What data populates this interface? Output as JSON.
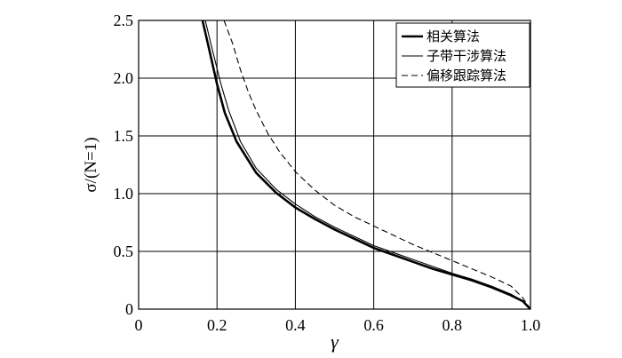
{
  "chart_data": {
    "type": "line",
    "xlabel": "γ",
    "ylabel": "σ/(N=1)",
    "xlim": [
      0,
      1.0
    ],
    "ylim": [
      0,
      2.5
    ],
    "x_ticks": [
      "0",
      "0.2",
      "0.4",
      "0.6",
      "0.8",
      "1.0"
    ],
    "y_ticks": [
      "0",
      "0.5",
      "1.0",
      "1.5",
      "2.0",
      "2.5"
    ],
    "grid": true,
    "legend_position": "top-right",
    "series": [
      {
        "name": "相关算法",
        "style": "thick-solid",
        "x": [
          0.163,
          0.18,
          0.2,
          0.22,
          0.25,
          0.3,
          0.35,
          0.4,
          0.45,
          0.5,
          0.55,
          0.6,
          0.65,
          0.7,
          0.75,
          0.8,
          0.85,
          0.9,
          0.95,
          0.98,
          1.0
        ],
        "y": [
          2.5,
          2.25,
          1.95,
          1.7,
          1.45,
          1.18,
          1.01,
          0.88,
          0.78,
          0.69,
          0.61,
          0.53,
          0.47,
          0.41,
          0.35,
          0.3,
          0.25,
          0.19,
          0.12,
          0.07,
          0.0
        ]
      },
      {
        "name": "子带干涉算法",
        "style": "thin-solid",
        "x": [
          0.17,
          0.19,
          0.21,
          0.23,
          0.26,
          0.3,
          0.35,
          0.4,
          0.45,
          0.5,
          0.55,
          0.6,
          0.65,
          0.7,
          0.75,
          0.8,
          0.85,
          0.9,
          0.95,
          0.98,
          1.0
        ],
        "y": [
          2.5,
          2.22,
          1.95,
          1.72,
          1.45,
          1.22,
          1.04,
          0.91,
          0.8,
          0.71,
          0.63,
          0.55,
          0.49,
          0.43,
          0.37,
          0.31,
          0.26,
          0.2,
          0.13,
          0.07,
          0.0
        ]
      },
      {
        "name": "偏移跟踪算法",
        "style": "dashed",
        "x": [
          0.218,
          0.24,
          0.26,
          0.28,
          0.3,
          0.33,
          0.36,
          0.4,
          0.45,
          0.5,
          0.55,
          0.6,
          0.65,
          0.7,
          0.75,
          0.8,
          0.85,
          0.9,
          0.95,
          0.98,
          1.0
        ],
        "y": [
          2.5,
          2.3,
          2.07,
          1.88,
          1.72,
          1.52,
          1.36,
          1.19,
          1.03,
          0.9,
          0.8,
          0.72,
          0.64,
          0.56,
          0.49,
          0.42,
          0.35,
          0.28,
          0.2,
          0.1,
          0.0
        ]
      }
    ]
  }
}
